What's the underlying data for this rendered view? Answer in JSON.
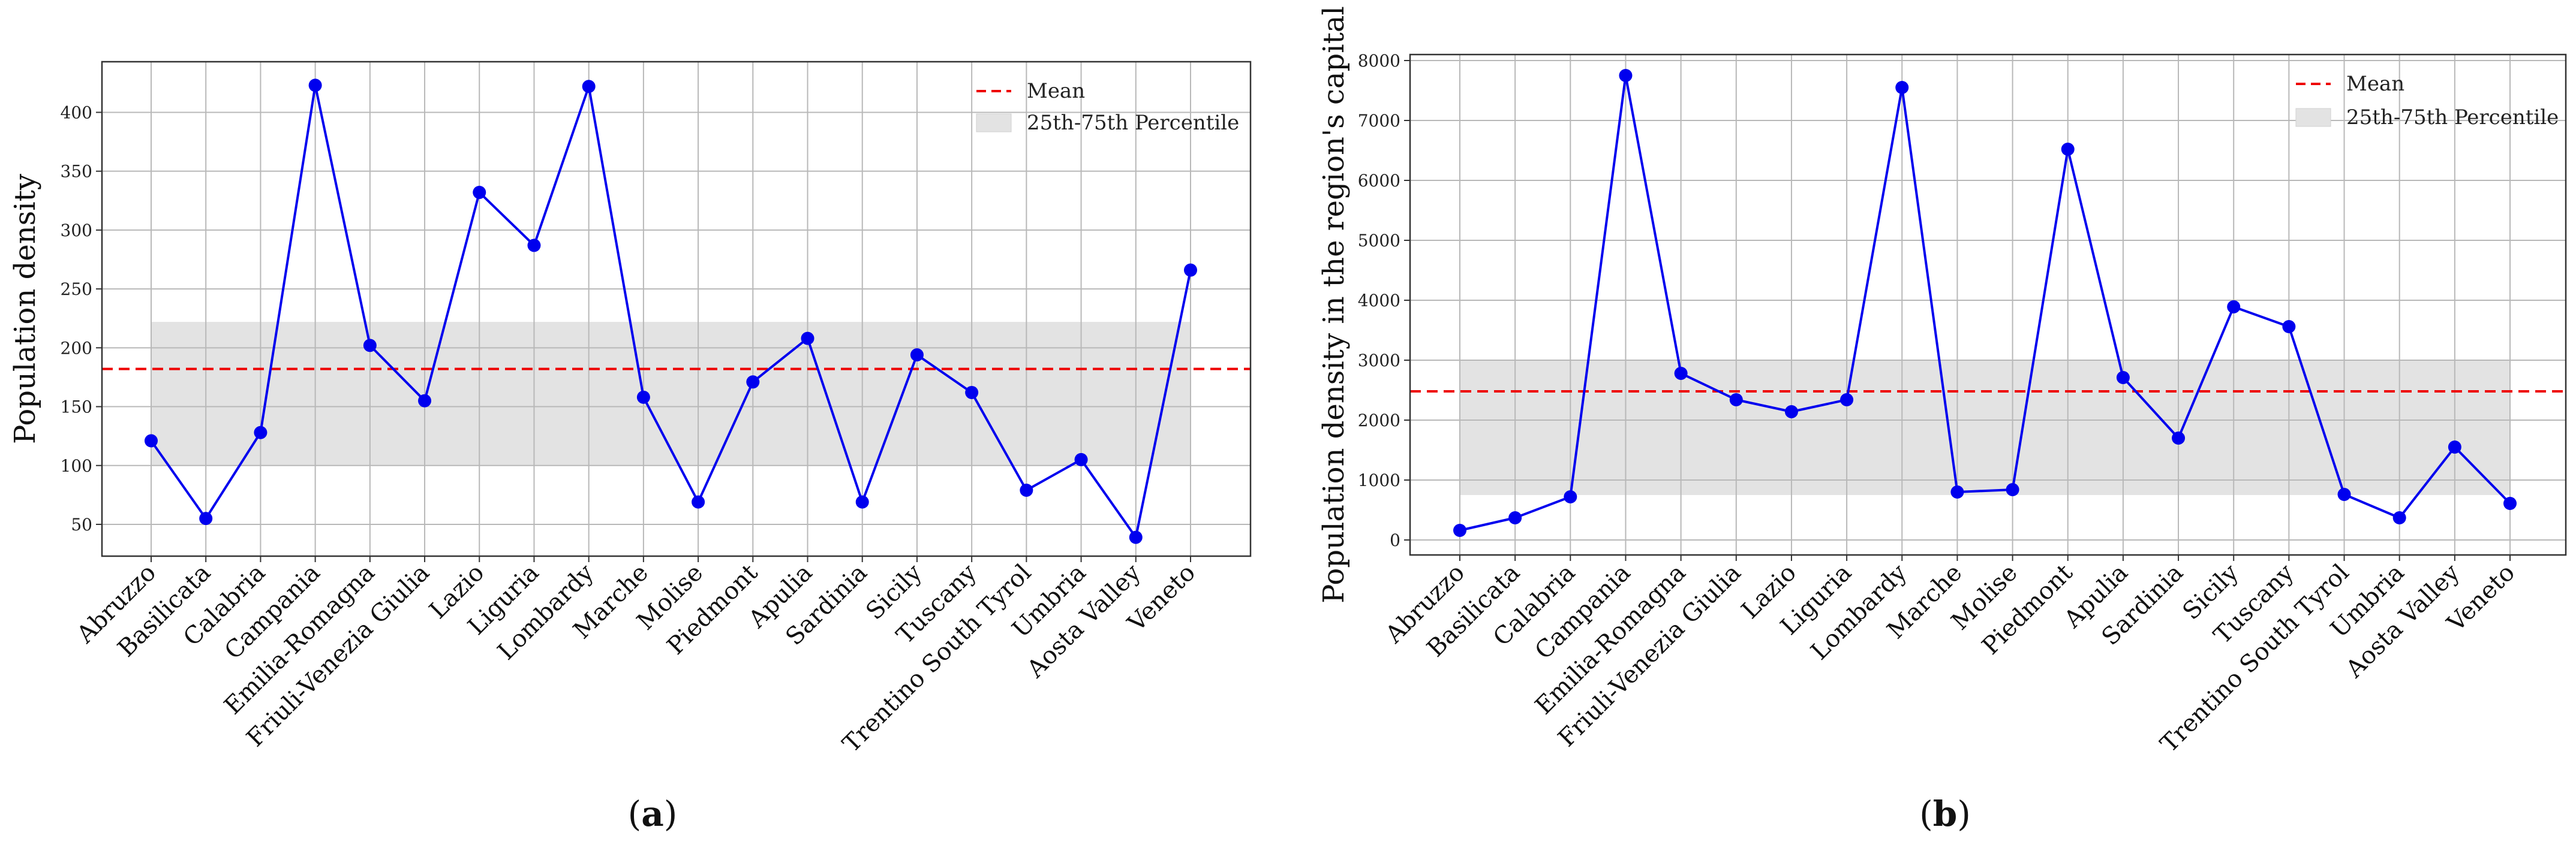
{
  "chart_data": [
    {
      "type": "line",
      "panel_label": "a",
      "title": "",
      "xlabel": "",
      "ylabel": "Population density",
      "categories": [
        "Abruzzo",
        "Basilicata",
        "Calabria",
        "Campania",
        "Emilia-Romagna",
        "Friuli-Venezia Giulia",
        "Lazio",
        "Liguria",
        "Lombardy",
        "Marche",
        "Molise",
        "Piedmont",
        "Apulia",
        "Sardinia",
        "Sicily",
        "Tuscany",
        "Trentino South Tyrol",
        "Umbria",
        "Aosta Valley",
        "Veneto"
      ],
      "series": [
        {
          "name": "Population density",
          "color": "#0000ee",
          "values": [
            121,
            55,
            128,
            423,
            202,
            155,
            332,
            287,
            422,
            158,
            69,
            171,
            208,
            69,
            194,
            162,
            79,
            105,
            39,
            266
          ]
        }
      ],
      "mean": 182,
      "percentile_band": [
        100,
        222
      ],
      "ylim": [
        23,
        443
      ],
      "yticks": [
        50,
        100,
        150,
        200,
        250,
        300,
        350,
        400
      ],
      "legend": {
        "placement": "top-right",
        "mean_label": "Mean",
        "band_label": "25th-75th Percentile"
      },
      "colors": {
        "line": "#0000ee",
        "mean": "#ee0000",
        "band": "#e3e3e3"
      },
      "grid": true
    },
    {
      "type": "line",
      "panel_label": "b",
      "title": "",
      "xlabel": "",
      "ylabel": "Population density in the region's capital",
      "categories": [
        "Abruzzo",
        "Basilicata",
        "Calabria",
        "Campania",
        "Emilia-Romagna",
        "Friuli-Venezia Giulia",
        "Lazio",
        "Liguria",
        "Lombardy",
        "Marche",
        "Molise",
        "Piedmont",
        "Apulia",
        "Sardinia",
        "Sicily",
        "Tuscany",
        "Trentino South Tyrol",
        "Umbria",
        "Aosta Valley",
        "Veneto"
      ],
      "series": [
        {
          "name": "Population density in the region's capital",
          "color": "#0000ee",
          "values": [
            160,
            370,
            720,
            7750,
            2780,
            2340,
            2140,
            2340,
            7550,
            800,
            840,
            6520,
            2710,
            1700,
            3890,
            3560,
            760,
            370,
            1550,
            610
          ]
        }
      ],
      "mean": 2480,
      "percentile_band": [
        750,
        3000
      ],
      "ylim": [
        -250,
        8100
      ],
      "yticks": [
        0,
        1000,
        2000,
        3000,
        4000,
        5000,
        6000,
        7000,
        8000
      ],
      "legend": {
        "placement": "top-right",
        "mean_label": "Mean",
        "band_label": "25th-75th Percentile"
      },
      "colors": {
        "line": "#0000ee",
        "mean": "#ee0000",
        "band": "#e3e3e3"
      },
      "grid": true
    }
  ]
}
